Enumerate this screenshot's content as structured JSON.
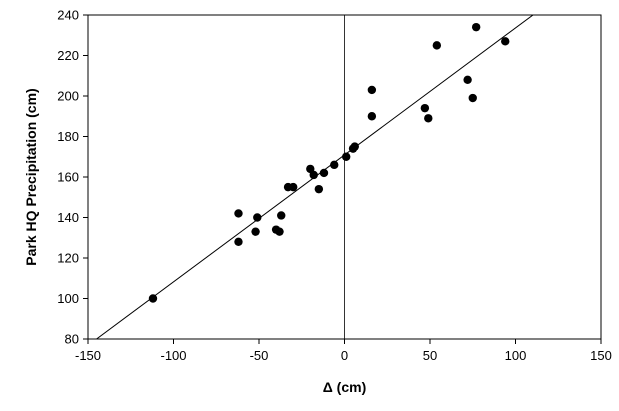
{
  "chart_data": {
    "type": "scatter",
    "xlabel": "Δ (cm)",
    "ylabel": "Park HQ Precipitation (cm)",
    "xlim": [
      -150,
      150
    ],
    "ylim": [
      80,
      240
    ],
    "x_ticks": [
      -150,
      -100,
      -50,
      0,
      50,
      100,
      150
    ],
    "y_ticks": [
      80,
      100,
      120,
      140,
      160,
      180,
      200,
      220,
      240
    ],
    "grid": false,
    "zero_reference_line": true,
    "marker_color": "#000000",
    "series": [
      {
        "points": [
          {
            "x": -112,
            "y": 100
          },
          {
            "x": -62,
            "y": 142
          },
          {
            "x": -62,
            "y": 128
          },
          {
            "x": -51,
            "y": 140
          },
          {
            "x": -52,
            "y": 133
          },
          {
            "x": -40,
            "y": 134
          },
          {
            "x": -38,
            "y": 133
          },
          {
            "x": -37,
            "y": 141
          },
          {
            "x": -33,
            "y": 155
          },
          {
            "x": -30,
            "y": 155
          },
          {
            "x": -20,
            "y": 164
          },
          {
            "x": -18,
            "y": 161
          },
          {
            "x": -15,
            "y": 154
          },
          {
            "x": -12,
            "y": 162
          },
          {
            "x": -6,
            "y": 166
          },
          {
            "x": 1,
            "y": 170
          },
          {
            "x": 5,
            "y": 174
          },
          {
            "x": 6,
            "y": 175
          },
          {
            "x": 16,
            "y": 203
          },
          {
            "x": 16,
            "y": 190
          },
          {
            "x": 47,
            "y": 194
          },
          {
            "x": 49,
            "y": 189
          },
          {
            "x": 54,
            "y": 225
          },
          {
            "x": 72,
            "y": 208
          },
          {
            "x": 75,
            "y": 199
          },
          {
            "x": 77,
            "y": 234
          },
          {
            "x": 94,
            "y": 227
          }
        ]
      }
    ],
    "fit_line": {
      "x": [
        -145,
        115
      ],
      "y": [
        80,
        243
      ]
    }
  }
}
